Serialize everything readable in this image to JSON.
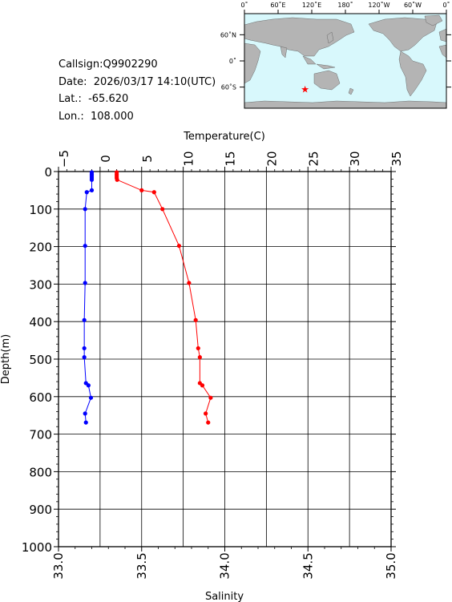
{
  "info": {
    "callsign": "Callsign:Q9902290",
    "date": "Date:  2026/03/17 14:10(UTC)",
    "lat": "Lat.:  -65.620",
    "lon": "Lon.:  108.000"
  },
  "map": {
    "top_labels": [
      "0˚",
      "60˚E",
      "120˚E",
      "180˚",
      "120˚W",
      "60˚W",
      "0˚"
    ],
    "lat_labels": [
      "60˚N",
      "0˚",
      "60˚S"
    ],
    "marker": {
      "lat": -65.62,
      "lon": 108.0,
      "symbol": "★"
    },
    "colors": {
      "ocean": "#d8f8fc",
      "land": "#b4b4b4",
      "marker": "#ff0000"
    }
  },
  "chart_data": {
    "type": "line",
    "y_axis": {
      "label": "Depth(m)",
      "range": [
        0,
        1000
      ],
      "ticks": [
        0,
        100,
        200,
        300,
        400,
        500,
        600,
        700,
        800,
        900,
        1000
      ],
      "inverted": true
    },
    "top_axis": {
      "label": "Temperature(C)",
      "range": [
        -5,
        35
      ],
      "ticks": [
        -5,
        0,
        5,
        10,
        15,
        20,
        25,
        30,
        35
      ]
    },
    "bottom_axis": {
      "label": "Salinity",
      "range": [
        33.0,
        35.0
      ],
      "ticks": [
        "33.0",
        "33.5",
        "34.0",
        "34.5",
        "35.0"
      ]
    },
    "grid": true,
    "series": [
      {
        "axis": "top",
        "color": "#ff0000",
        "points": [
          {
            "depth": 2,
            "value": 2.0
          },
          {
            "depth": 7,
            "value": 2.0
          },
          {
            "depth": 12,
            "value": 2.0
          },
          {
            "depth": 17,
            "value": 2.0
          },
          {
            "depth": 22,
            "value": 2.05
          },
          {
            "depth": 50,
            "value": 5.0
          },
          {
            "depth": 55,
            "value": 6.5
          },
          {
            "depth": 100,
            "value": 7.5
          },
          {
            "depth": 198,
            "value": 9.5
          },
          {
            "depth": 297,
            "value": 10.7
          },
          {
            "depth": 396,
            "value": 11.5
          },
          {
            "depth": 471,
            "value": 11.8
          },
          {
            "depth": 495,
            "value": 12.0
          },
          {
            "depth": 564,
            "value": 12.0
          },
          {
            "depth": 570,
            "value": 12.3
          },
          {
            "depth": 603,
            "value": 13.3
          },
          {
            "depth": 645,
            "value": 12.7
          },
          {
            "depth": 669,
            "value": 13.0
          }
        ]
      },
      {
        "axis": "bottom",
        "color": "#0000ff",
        "points": [
          {
            "depth": 2,
            "value": 33.2
          },
          {
            "depth": 7,
            "value": 33.2
          },
          {
            "depth": 12,
            "value": 33.2
          },
          {
            "depth": 17,
            "value": 33.2
          },
          {
            "depth": 22,
            "value": 33.2
          },
          {
            "depth": 50,
            "value": 33.2
          },
          {
            "depth": 55,
            "value": 33.17
          },
          {
            "depth": 100,
            "value": 33.16
          },
          {
            "depth": 198,
            "value": 33.16
          },
          {
            "depth": 297,
            "value": 33.16
          },
          {
            "depth": 396,
            "value": 33.155
          },
          {
            "depth": 471,
            "value": 33.155
          },
          {
            "depth": 495,
            "value": 33.155
          },
          {
            "depth": 564,
            "value": 33.165
          },
          {
            "depth": 570,
            "value": 33.18
          },
          {
            "depth": 603,
            "value": 33.195
          },
          {
            "depth": 645,
            "value": 33.16
          },
          {
            "depth": 669,
            "value": 33.165
          }
        ]
      }
    ]
  }
}
